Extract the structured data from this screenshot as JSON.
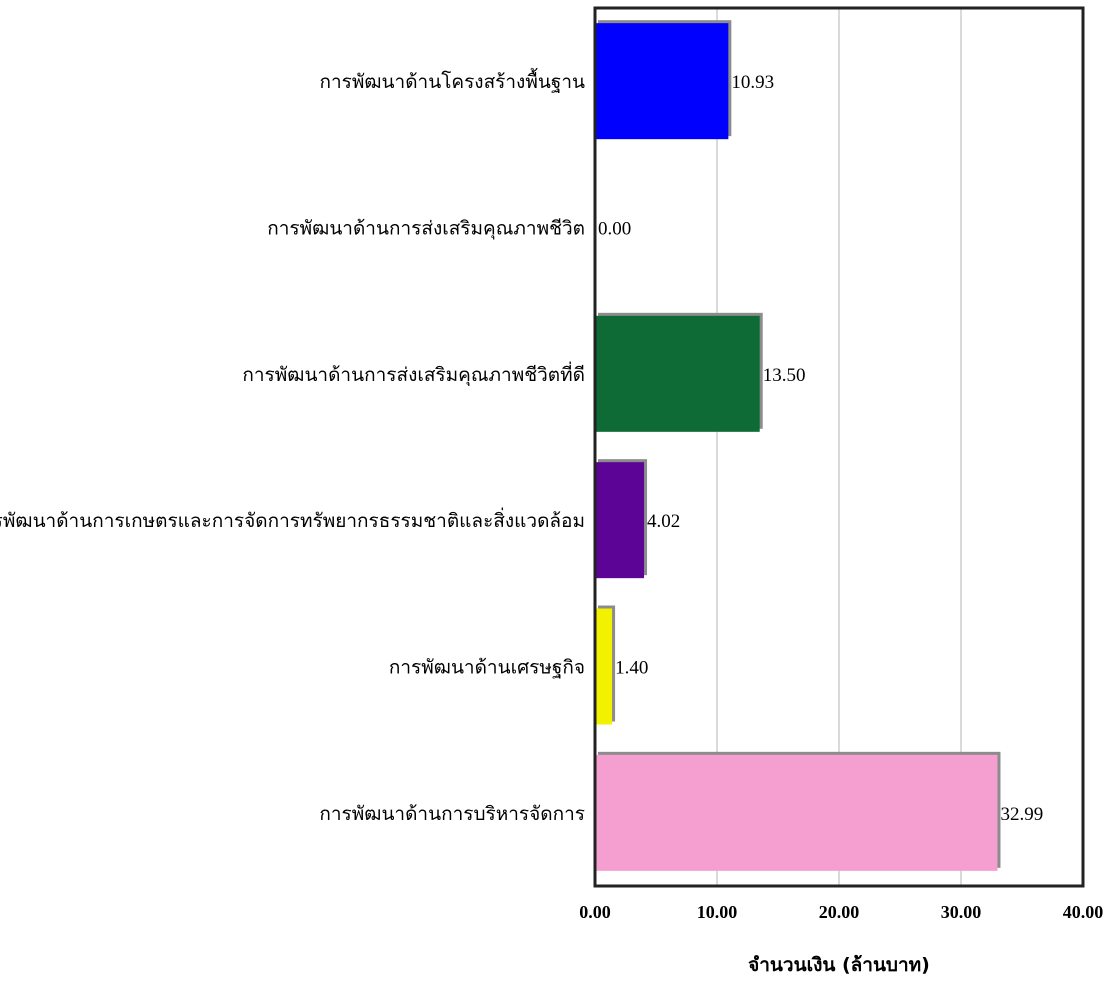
{
  "chart_data": {
    "type": "bar",
    "orientation": "horizontal",
    "categories": [
      "การพัฒนาด้านโครงสร้างพื้นฐาน",
      "การพัฒนาด้านการส่งเสริมคุณภาพชีวิต",
      "การพัฒนาด้านการส่งเสริมคุณภาพชีวิตที่ดี",
      "การพัฒนาด้านการเกษตรและการจัดการทรัพยากรธรรมชาติและสิ่งแวดล้อม",
      "การพัฒนาด้านเศรษฐกิจ",
      "การพัฒนาด้านการบริหารจัดการ"
    ],
    "values": [
      10.93,
      0.0,
      13.5,
      4.02,
      1.4,
      32.99
    ],
    "value_labels": [
      "10.93",
      "0.00",
      "13.50",
      "4.02",
      "1.40",
      "32.99"
    ],
    "colors": [
      "#0000ff",
      "#f07070",
      "#0f6b35",
      "#5c0496",
      "#f2f200",
      "#f49fcf"
    ],
    "xlabel": "จำนวนเงิน (ล้านบาท)",
    "xlim": [
      0,
      40
    ],
    "xticks": [
      0,
      10,
      20,
      30,
      40
    ],
    "xtick_labels": [
      "0.00",
      "10.00",
      "20.00",
      "30.00",
      "40.00"
    ],
    "grid": true,
    "legend": "none"
  }
}
